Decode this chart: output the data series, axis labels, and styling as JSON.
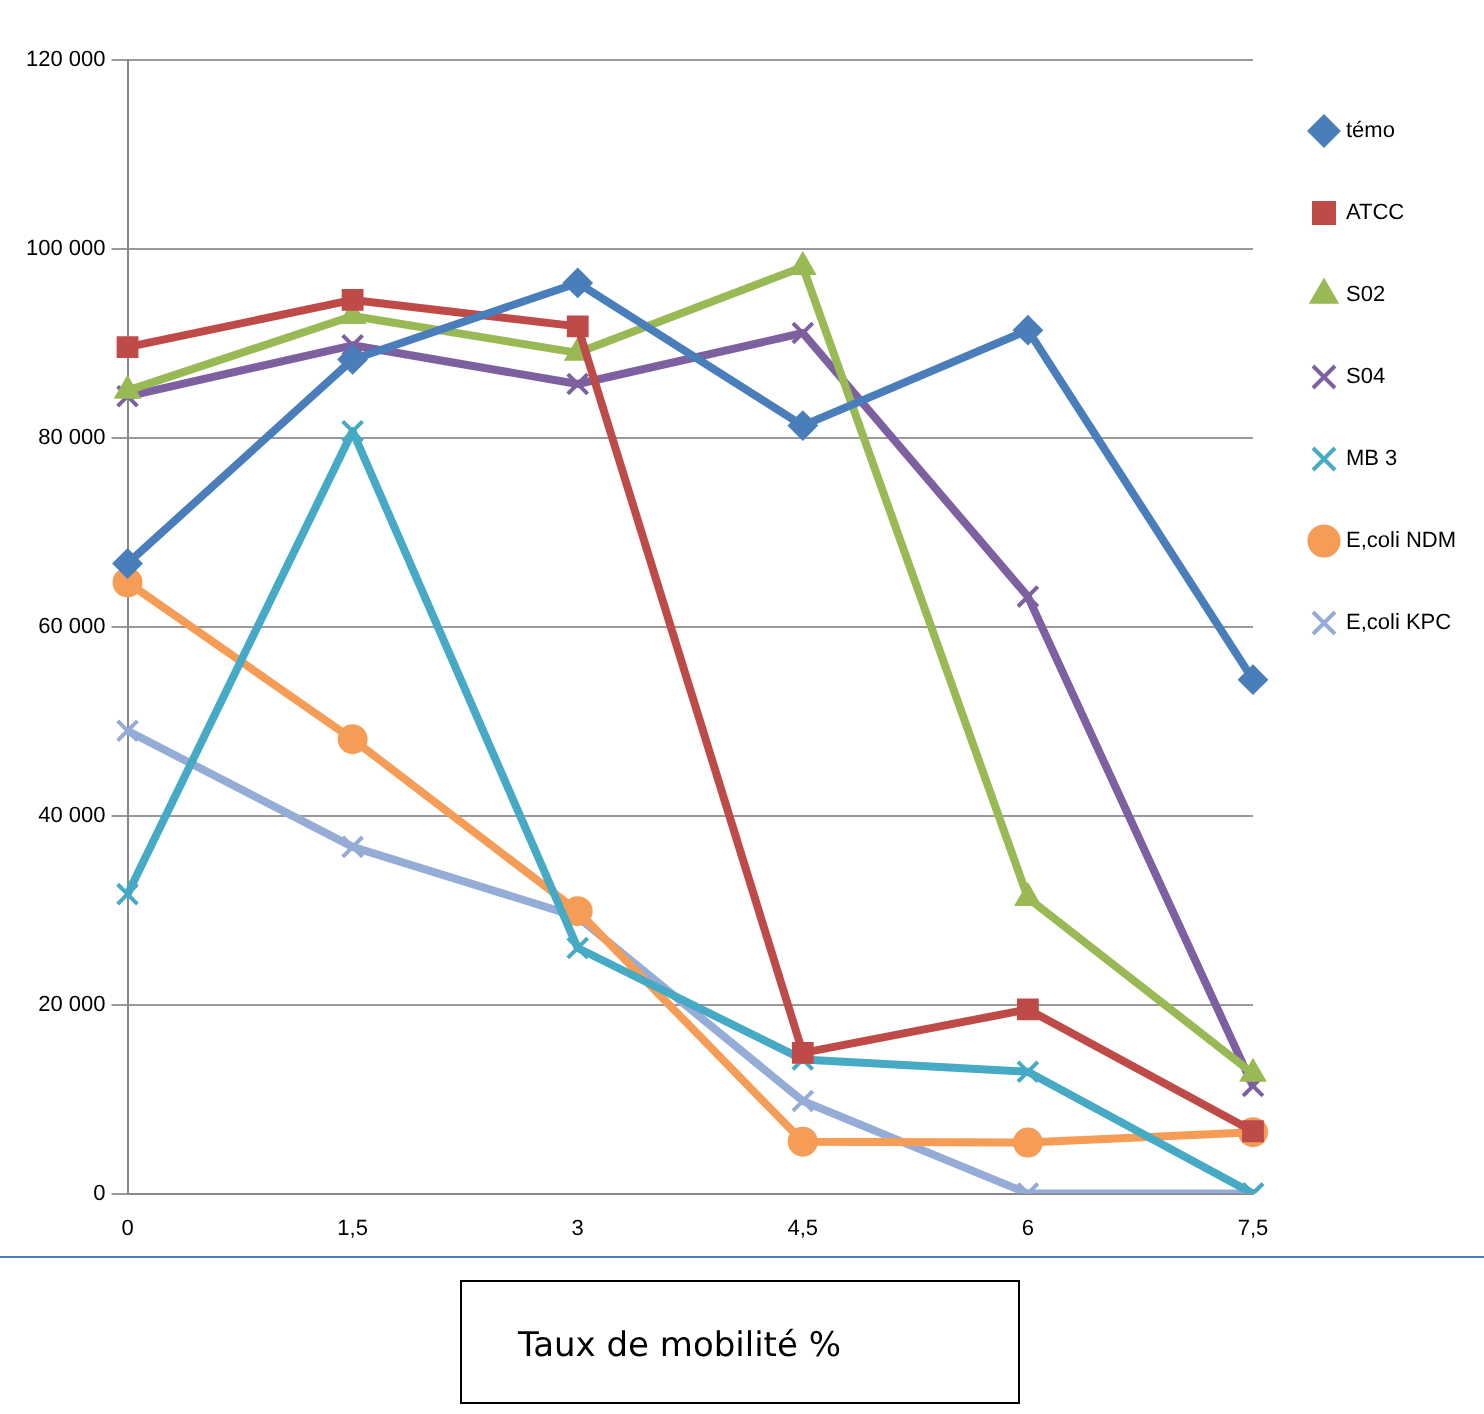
{
  "chart_data": {
    "type": "line",
    "xlabel": "Taux de mobilité %",
    "categories": [
      "0",
      "1,5",
      "3",
      "4,5",
      "6",
      "7,5"
    ],
    "ylim": [
      0,
      120000
    ],
    "yticks": [
      {
        "value": 0,
        "label": "0"
      },
      {
        "value": 20000,
        "label": "20 000"
      },
      {
        "value": 40000,
        "label": "40 000"
      },
      {
        "value": 60000,
        "label": "60 000"
      },
      {
        "value": 80000,
        "label": "80 000"
      },
      {
        "value": 100000,
        "label": "100 000"
      },
      {
        "value": 120000,
        "label": "120 000"
      }
    ],
    "grid": "y",
    "legend": "right",
    "line_style": "solid",
    "series": [
      {
        "name": "témo",
        "color": "#4a7ebb",
        "marker": "diamond",
        "values": [
          66700,
          88300,
          96400,
          81300,
          91400,
          54400
        ]
      },
      {
        "name": "ATCC",
        "color": "#be4b48",
        "marker": "square",
        "values": [
          89600,
          94600,
          91800,
          14900,
          19500,
          6600
        ]
      },
      {
        "name": "S02",
        "color": "#98b954",
        "marker": "triangle",
        "values": [
          85000,
          92900,
          89000,
          98100,
          31300,
          12700
        ]
      },
      {
        "name": "S04",
        "color": "#7d60a0",
        "marker": "cross",
        "values": [
          84400,
          89800,
          85700,
          91100,
          63200,
          11400
        ]
      },
      {
        "name": "MB 3",
        "color": "#46aac5",
        "marker": "cross",
        "values": [
          31700,
          80700,
          26000,
          14200,
          12900,
          0
        ]
      },
      {
        "name": "E,coli NDM",
        "color": "#f59d56",
        "marker": "circle",
        "values": [
          64700,
          48100,
          29900,
          5500,
          5400,
          6500
        ]
      },
      {
        "name": "E,coli KPC",
        "color": "#95acd6",
        "marker": "cross",
        "values": [
          49000,
          36700,
          29300,
          9800,
          0,
          0
        ]
      }
    ]
  }
}
